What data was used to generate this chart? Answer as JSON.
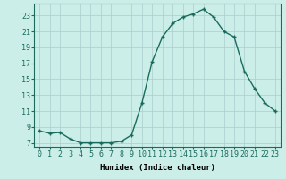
{
  "x": [
    0,
    1,
    2,
    3,
    4,
    5,
    6,
    7,
    8,
    9,
    10,
    11,
    12,
    13,
    14,
    15,
    16,
    17,
    18,
    19,
    20,
    21,
    22,
    23
  ],
  "y": [
    8.5,
    8.2,
    8.3,
    7.5,
    7.0,
    7.0,
    7.0,
    7.0,
    7.2,
    8.0,
    12.0,
    17.2,
    20.3,
    22.0,
    22.8,
    23.2,
    23.8,
    22.8,
    21.0,
    20.3,
    16.0,
    13.8,
    12.0,
    11.0
  ],
  "line_color": "#1a6b5e",
  "marker": "+",
  "markersize": 3.5,
  "bg_color": "#cceee8",
  "grid_color": "#aacccc",
  "xlabel": "Humidex (Indice chaleur)",
  "xlim": [
    -0.5,
    23.5
  ],
  "ylim": [
    6.5,
    24.5
  ],
  "yticks": [
    7,
    9,
    11,
    13,
    15,
    17,
    19,
    21,
    23
  ],
  "xticks": [
    0,
    1,
    2,
    3,
    4,
    5,
    6,
    7,
    8,
    9,
    10,
    11,
    12,
    13,
    14,
    15,
    16,
    17,
    18,
    19,
    20,
    21,
    22,
    23
  ],
  "xtick_labels": [
    "0",
    "1",
    "2",
    "3",
    "4",
    "5",
    "6",
    "7",
    "8",
    "9",
    "10",
    "11",
    "12",
    "13",
    "14",
    "15",
    "16",
    "17",
    "18",
    "19",
    "20",
    "21",
    "22",
    "23"
  ],
  "xlabel_fontsize": 6.5,
  "tick_fontsize": 6.0,
  "linewidth": 1.0,
  "markeredgewidth": 1.0
}
